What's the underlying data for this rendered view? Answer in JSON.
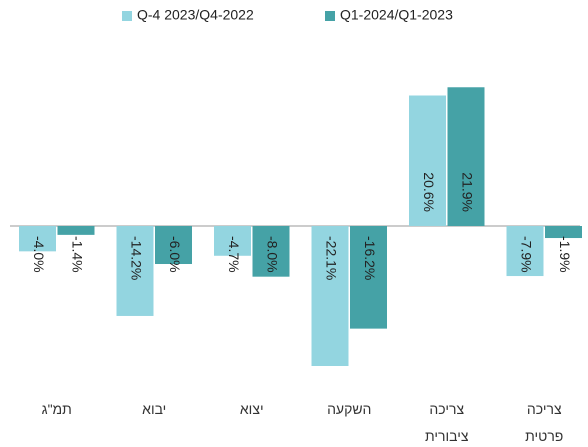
{
  "chart_data": {
    "type": "bar",
    "categories": [
      "תמ\"ג",
      "יבוא",
      "יצוא",
      "השקעה",
      "צריכה ציבורית",
      "צריכה פרטית"
    ],
    "series": [
      {
        "name": "Q-4 2023/Q4-2022",
        "color": "#93d5e0",
        "values": [
          -4.0,
          -14.2,
          -4.7,
          -22.1,
          20.6,
          -7.9
        ],
        "value_labels": [
          "-4.0%",
          "-14.2%",
          "-4.7%",
          "-22.1%",
          "20.6%",
          "-7.9%"
        ]
      },
      {
        "name": "Q1-2024/Q1-2023",
        "color": "#45a2a6",
        "values": [
          -1.4,
          -6.0,
          -8.0,
          -16.2,
          21.9,
          -1.9
        ],
        "value_labels": [
          "-1.4%",
          "-6.0%",
          "-8.0%",
          "-16.2%",
          "21.9%",
          "-1.9%"
        ]
      }
    ],
    "legend": "top"
  }
}
